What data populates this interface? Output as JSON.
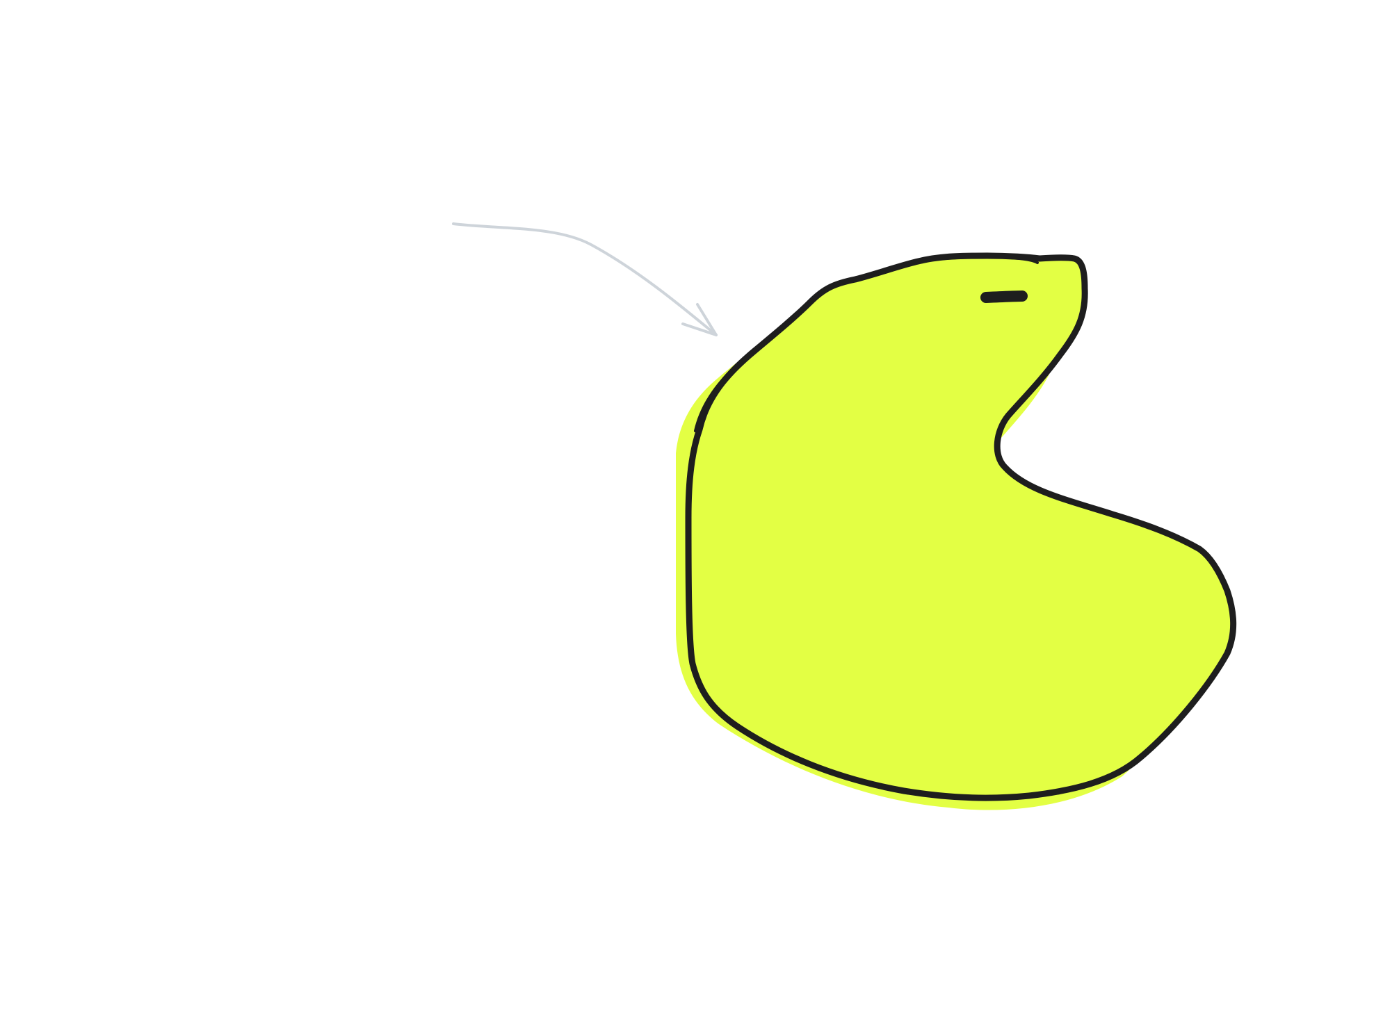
{
  "canvas": {
    "background_color": "#ffffff"
  },
  "shapes": [
    {
      "kind": "freehand-blob",
      "name": "yellow-blob",
      "fill_color": "#e3ff44",
      "stroke_color": "#1e1e1e"
    }
  ],
  "arrows": [
    {
      "kind": "curved-arrow",
      "name": "pointer-arrow",
      "stroke_color": "#ced4da",
      "points_to": "yellow-blob"
    }
  ]
}
